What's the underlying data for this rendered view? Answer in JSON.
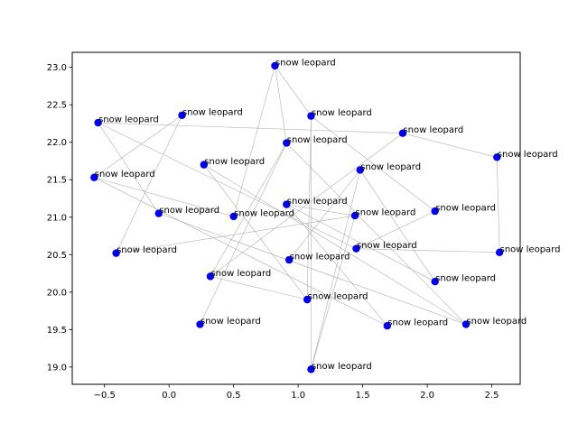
{
  "chart_data": {
    "type": "scatter",
    "title": "",
    "xlabel": "",
    "ylabel": "",
    "xlim": [
      -0.75,
      2.72
    ],
    "ylim": [
      18.77,
      23.2
    ],
    "xticks": [
      -0.5,
      0.0,
      0.5,
      1.0,
      1.5,
      2.0,
      2.5
    ],
    "xtick_labels": [
      "−0.5",
      "0.0",
      "0.5",
      "1.0",
      "1.5",
      "2.0",
      "2.5"
    ],
    "yticks": [
      19.0,
      19.5,
      20.0,
      20.5,
      21.0,
      21.5,
      22.0,
      22.5,
      23.0
    ],
    "ytick_labels": [
      "19.0",
      "19.5",
      "20.0",
      "20.5",
      "21.0",
      "21.5",
      "22.0",
      "22.5",
      "23.0"
    ],
    "grid": false,
    "marker_color": "#0000ee",
    "edge_color": "#b0b0b0",
    "points": [
      {
        "x": 0.82,
        "y": 23.02,
        "label": "snow leopard"
      },
      {
        "x": 1.1,
        "y": 22.35,
        "label": "snow leopard"
      },
      {
        "x": 0.1,
        "y": 22.36,
        "label": "snow leopard"
      },
      {
        "x": -0.55,
        "y": 22.26,
        "label": "snow leopard"
      },
      {
        "x": 1.81,
        "y": 22.12,
        "label": "snow leopard"
      },
      {
        "x": 0.91,
        "y": 21.99,
        "label": "snow leopard"
      },
      {
        "x": 2.54,
        "y": 21.8,
        "label": "snow leopard"
      },
      {
        "x": 0.27,
        "y": 21.7,
        "label": "snow leopard"
      },
      {
        "x": 1.48,
        "y": 21.63,
        "label": "snow leopard"
      },
      {
        "x": -0.58,
        "y": 21.53,
        "label": "snow leopard"
      },
      {
        "x": 0.91,
        "y": 21.17,
        "label": "snow leopard"
      },
      {
        "x": 2.06,
        "y": 21.08,
        "label": "snow leopard"
      },
      {
        "x": -0.08,
        "y": 21.05,
        "label": "snow leopard"
      },
      {
        "x": 0.5,
        "y": 21.01,
        "label": "snow leopard"
      },
      {
        "x": 1.44,
        "y": 21.02,
        "label": "snow leopard"
      },
      {
        "x": 1.45,
        "y": 20.58,
        "label": "snow leopard"
      },
      {
        "x": -0.41,
        "y": 20.52,
        "label": "snow leopard"
      },
      {
        "x": 2.56,
        "y": 20.53,
        "label": "snow leopard"
      },
      {
        "x": 0.93,
        "y": 20.43,
        "label": "snow leopard"
      },
      {
        "x": 0.32,
        "y": 20.21,
        "label": "snow leopard"
      },
      {
        "x": 2.06,
        "y": 20.14,
        "label": "snow leopard"
      },
      {
        "x": 1.07,
        "y": 19.9,
        "label": "snow leopard"
      },
      {
        "x": 0.24,
        "y": 19.57,
        "label": "snow leopard"
      },
      {
        "x": 1.69,
        "y": 19.55,
        "label": "snow leopard"
      },
      {
        "x": 2.3,
        "y": 19.57,
        "label": "snow leopard"
      },
      {
        "x": 1.1,
        "y": 18.97,
        "label": "snow leopard"
      }
    ],
    "edges": [
      [
        0,
        5
      ],
      [
        0,
        1
      ],
      [
        0,
        13
      ],
      [
        1,
        11
      ],
      [
        1,
        21
      ],
      [
        1,
        25
      ],
      [
        2,
        9
      ],
      [
        2,
        16
      ],
      [
        3,
        4
      ],
      [
        3,
        15
      ],
      [
        3,
        12
      ],
      [
        4,
        6
      ],
      [
        4,
        19
      ],
      [
        5,
        22
      ],
      [
        5,
        19
      ],
      [
        5,
        24
      ],
      [
        6,
        17
      ],
      [
        15,
        17
      ],
      [
        7,
        21
      ],
      [
        7,
        24
      ],
      [
        8,
        18
      ],
      [
        8,
        20
      ],
      [
        8,
        25
      ],
      [
        9,
        13
      ],
      [
        9,
        23
      ],
      [
        10,
        14
      ],
      [
        10,
        20
      ],
      [
        10,
        23
      ],
      [
        11,
        15
      ],
      [
        12,
        24
      ],
      [
        14,
        16
      ],
      [
        14,
        25
      ],
      [
        19,
        21
      ]
    ]
  }
}
